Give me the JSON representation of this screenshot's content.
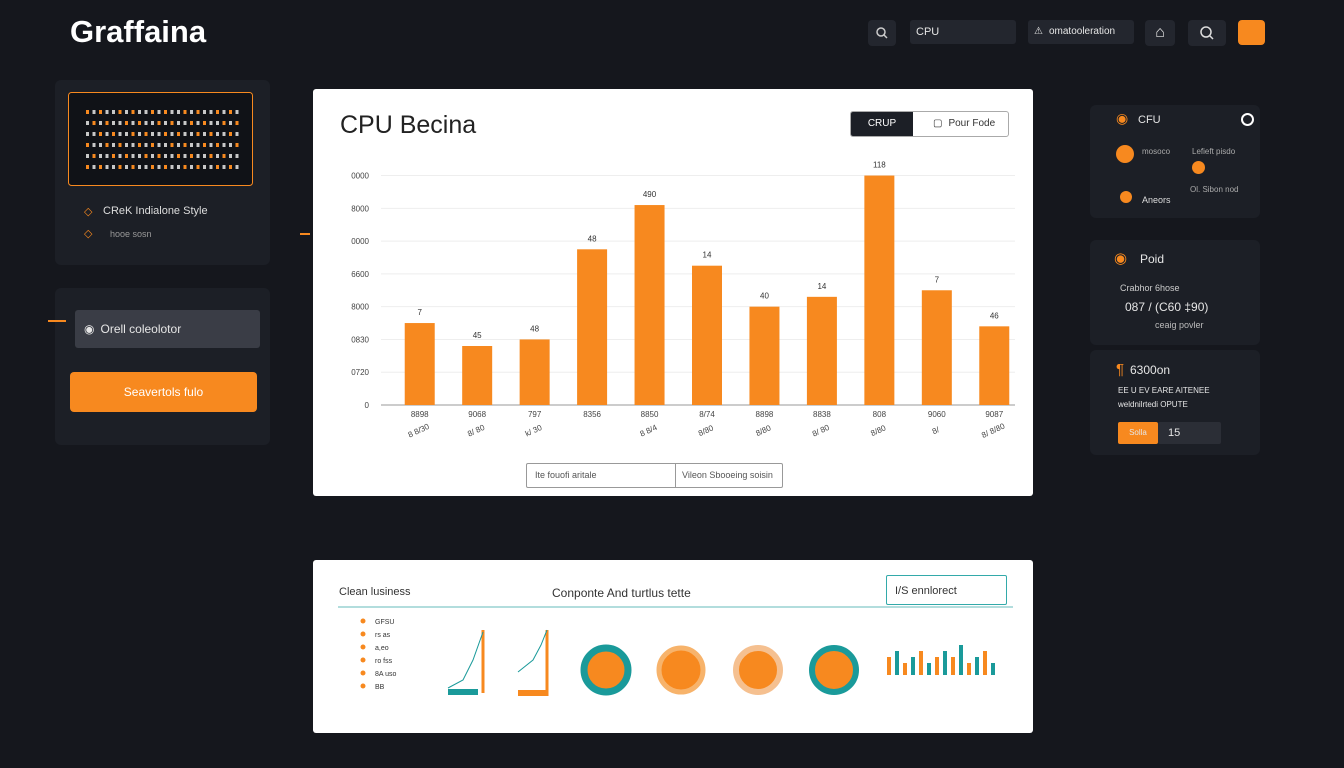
{
  "header": {
    "logo": "Graffaina",
    "search_input": "CPU",
    "alert_input": "omatooleration"
  },
  "left_panel": {
    "card_title": "CReK Indialone Style",
    "card_subtitle": "hooe sosn",
    "input": "Orell coleolotor",
    "button": "Seavertols fulo"
  },
  "main_panel": {
    "title": "CPU Becina",
    "toggle": [
      "CRUP",
      "Pour Fode"
    ],
    "chart": {
      "type": "bar",
      "categories": [
        "8898",
        "9068",
        "797",
        "8356",
        "8850",
        "8/74",
        "8898",
        "8838",
        "808",
        "9060",
        "9087"
      ],
      "sublabels": [
        "8 8/30",
        "8/ 80",
        "k/ 30",
        "",
        "8 8/4",
        "8/80",
        "8/80",
        "8/ 80",
        "8/80",
        "8/",
        "8/ 8/80"
      ],
      "values": [
        2.5,
        1.8,
        2.0,
        4.75,
        6.1,
        4.25,
        3.0,
        3.3,
        7.0,
        3.5,
        2.4
      ],
      "value_labels": [
        "7",
        "45",
        "48",
        "48",
        "490",
        "14",
        "40",
        "14",
        "118",
        "7",
        "46"
      ],
      "color": "#f7891f",
      "ylim": [
        0,
        7.2
      ],
      "yticks": [
        {
          "value": 0,
          "label": "0"
        },
        {
          "value": 1,
          "label": "0720"
        },
        {
          "value": 2,
          "label": "0830"
        },
        {
          "value": 3,
          "label": "8000"
        },
        {
          "value": 4,
          "label": "6600"
        },
        {
          "value": 5,
          "label": "0000"
        },
        {
          "value": 6,
          "label": "8000"
        },
        {
          "value": 7,
          "label": "0000"
        }
      ],
      "grid": true
    },
    "legend": [
      "Ite fouofi aritale",
      "Vileon Sbooeing soisin"
    ]
  },
  "right_panel": {
    "cpu": {
      "title": "CFU",
      "rows": [
        "mosoco",
        "Lefieft pisdo",
        "Ol. Sibon nod",
        "Aneors"
      ]
    },
    "poid": {
      "title": "Poid",
      "label": "Crabhor 6hose",
      "value": "087 / (C60 ‡90)",
      "note": "ceaig povler"
    },
    "stat": {
      "title": "6300on",
      "line1": "EE U EV EARE AITENEE",
      "line2": "weldnilrtedi OPUTE",
      "button": "Solla",
      "count": "15"
    }
  },
  "bottom_panel": {
    "title_left": "Clean lusiness",
    "title_mid": "Conponte And turtlus tette",
    "box": "I/S ennlorect",
    "list": [
      "GFSU",
      "rs as",
      "a,eo",
      "ro fss",
      "8A uso",
      "BB"
    ],
    "mini_bars": [
      3,
      4,
      2,
      3,
      4,
      2,
      3,
      4,
      3,
      5,
      2,
      3,
      4,
      2
    ]
  }
}
